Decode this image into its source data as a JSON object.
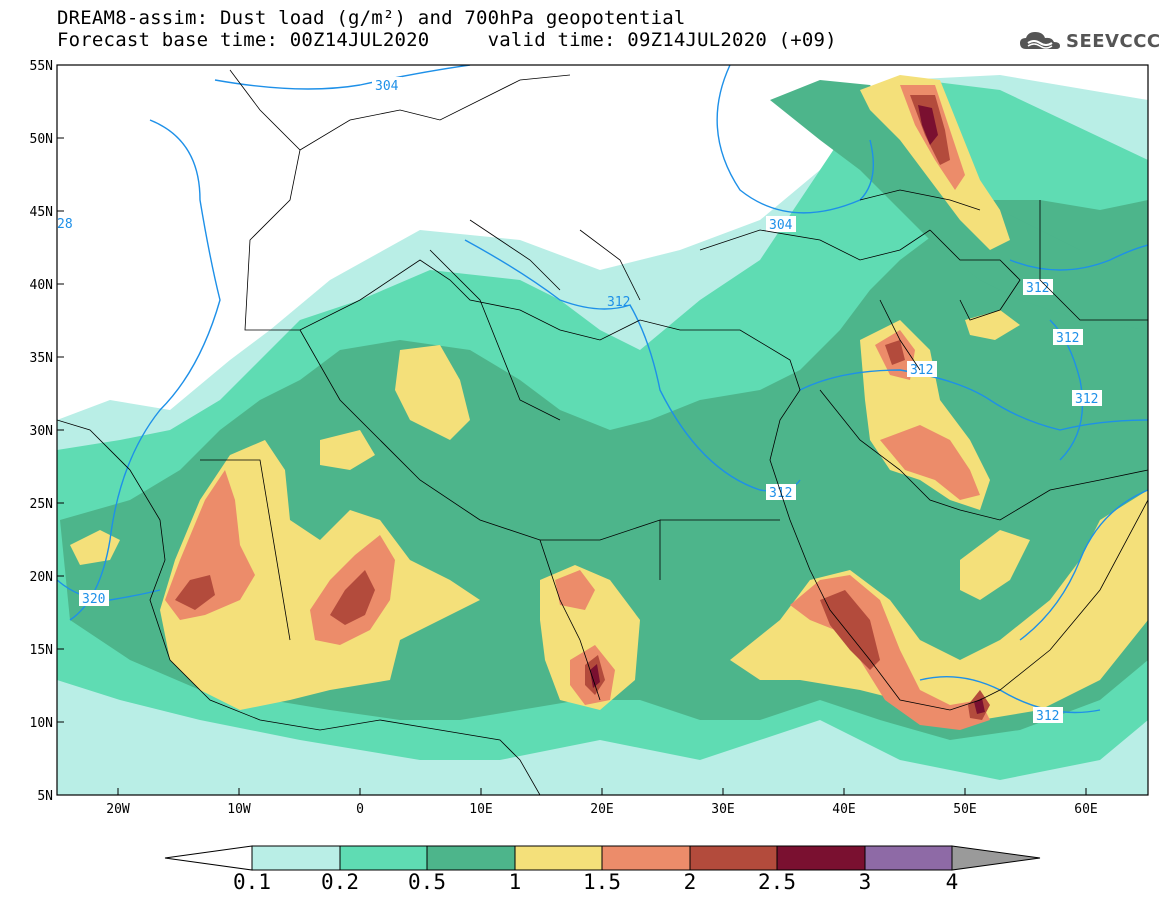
{
  "header": {
    "title_line1": "DREAM8-assim: Dust load (g/m²) and 700hPa geopotential",
    "title_line2": "Forecast base time: 00Z14JUL2020     valid time: 09Z14JUL2020 (+09)",
    "logo_text": "SEEVCCC"
  },
  "map": {
    "lat_range": [
      5,
      55
    ],
    "lon_range": [
      -25,
      65
    ],
    "lat_labels": [
      "55N",
      "50N",
      "45N",
      "40N",
      "35N",
      "30N",
      "25N",
      "20N",
      "15N",
      "10N",
      "5N"
    ],
    "lon_labels": [
      "20W",
      "10W",
      "0",
      "10E",
      "20E",
      "30E",
      "40E",
      "50E",
      "60E"
    ],
    "contour_labels": [
      "304",
      "304",
      "28",
      "312",
      "312",
      "312",
      "312",
      "312",
      "312",
      "320",
      "312"
    ],
    "colors": {
      "level_0.1": "#b9eee6",
      "level_0.2": "#5fdcb3",
      "level_0.5": "#4db58b",
      "level_1": "#f4e07a",
      "level_1.5": "#ec8c6a",
      "level_2": "#b34b3c",
      "level_2.5": "#7a1030",
      "contour": "#1e90e8"
    }
  },
  "colorbar": {
    "labels": [
      "0.1",
      "0.2",
      "0.5",
      "1",
      "1.5",
      "2",
      "2.5",
      "3",
      "4"
    ],
    "colors": [
      "#b9eee6",
      "#5fdcb3",
      "#4db58b",
      "#f4e07a",
      "#ec8c6a",
      "#b34b3c",
      "#7a1030",
      "#8e6aa6"
    ]
  }
}
